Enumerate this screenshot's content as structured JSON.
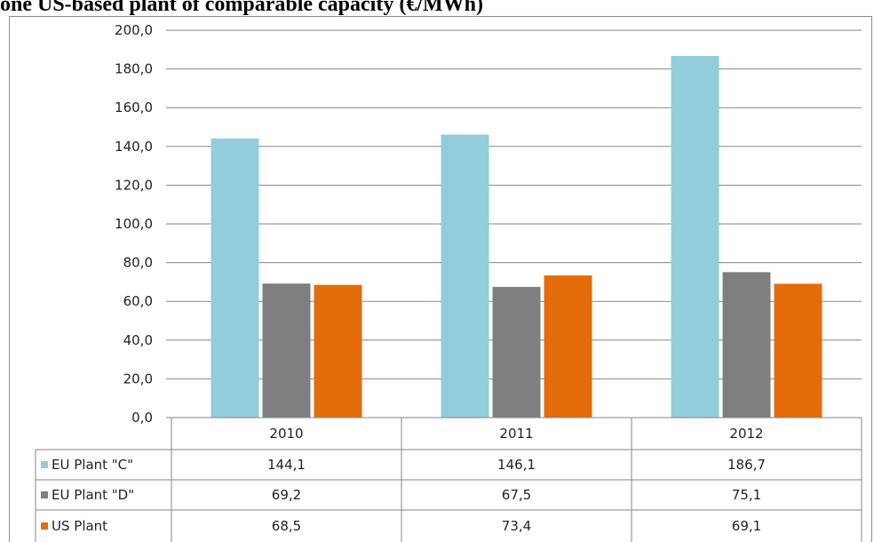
{
  "title": "one US-based plant of comparable capacity (€/MWh)",
  "chart_data": {
    "type": "bar",
    "categories": [
      "2010",
      "2011",
      "2012"
    ],
    "series": [
      {
        "name": "EU Plant \"C\"",
        "values": [
          "144,1",
          "146,1",
          "186,7"
        ],
        "numeric": [
          144.1,
          146.1,
          186.7
        ],
        "color": "#92cddc"
      },
      {
        "name": "EU Plant \"D\"",
        "values": [
          "69,2",
          "67,5",
          "75,1"
        ],
        "numeric": [
          69.2,
          67.5,
          75.1
        ],
        "color": "#7f7f7f"
      },
      {
        "name": "US Plant",
        "values": [
          "68,5",
          "73,4",
          "69,1"
        ],
        "numeric": [
          68.5,
          73.4,
          69.1
        ],
        "color": "#e46c0a"
      }
    ],
    "ylim": [
      0,
      200
    ],
    "yticks": [
      "0,0",
      "20,0",
      "40,0",
      "60,0",
      "80,0",
      "100,0",
      "120,0",
      "140,0",
      "160,0",
      "180,0",
      "200,0"
    ],
    "grid": true,
    "legend": "data-table"
  }
}
